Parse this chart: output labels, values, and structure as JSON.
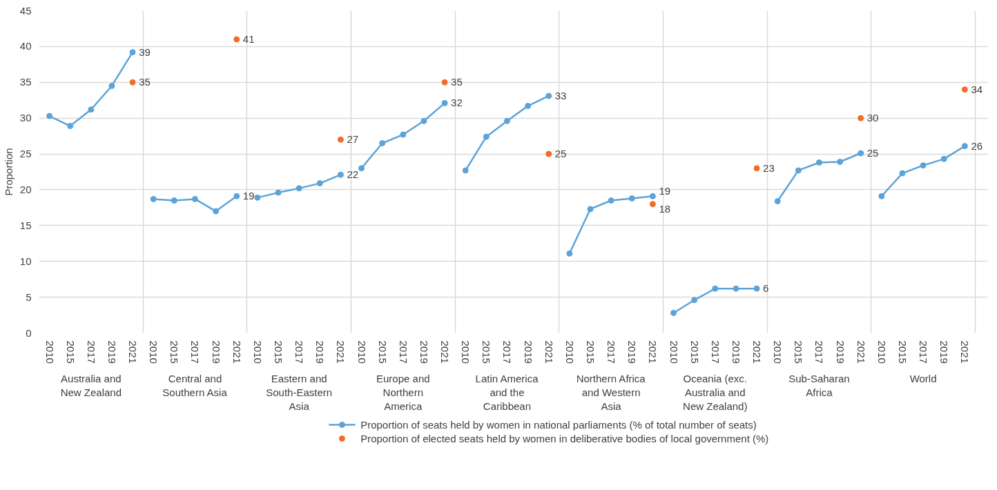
{
  "chart_data": {
    "type": "line",
    "ylabel": "Proportion",
    "categories": [
      "2010",
      "2015",
      "2017",
      "2019",
      "2021",
      "2010",
      "2015",
      "2017",
      "2019",
      "2021",
      "2010",
      "2015",
      "2017",
      "2019",
      "2021",
      "2010",
      "2015",
      "2017",
      "2019",
      "2021",
      "2010",
      "2015",
      "2017",
      "2019",
      "2021",
      "2010",
      "2015",
      "2017",
      "2019",
      "2021",
      "2010",
      "2015",
      "2017",
      "2019",
      "2021",
      "2010",
      "2015",
      "2017",
      "2019",
      "2021",
      "2010",
      "2015",
      "2017",
      "2019",
      "2021"
    ],
    "annotations": [
      "Australia and New Zealand",
      "Central and Southern Asia",
      "Eastern and South-Eastern Asia",
      "Europe and Northern America",
      "Latin America and the Caribbean",
      "Northern Africa and Western Asia",
      "Oceania (exc. Australia and New Zealand)",
      "Sub-Saharan Africa",
      "World"
    ],
    "series": [
      {
        "name": "Proportion of seats held by women in national parliaments (% of total number of seats)",
        "color": "#5ba3d9",
        "values": [
          30.3,
          28.9,
          31.2,
          34.5,
          39.2,
          18.7,
          18.5,
          18.7,
          17.0,
          19.1,
          18.9,
          19.6,
          20.2,
          20.9,
          22.1,
          23.0,
          26.5,
          27.7,
          29.6,
          32.1,
          22.7,
          27.4,
          29.6,
          31.7,
          33.1,
          11.1,
          17.3,
          18.5,
          18.8,
          19.1,
          2.8,
          4.6,
          6.2,
          6.2,
          6.2,
          18.4,
          22.7,
          23.8,
          23.9,
          25.1,
          19.1,
          22.3,
          23.4,
          24.3,
          26.1
        ],
        "value_labels": [
          null,
          null,
          null,
          null,
          "39",
          null,
          null,
          null,
          null,
          "19",
          null,
          null,
          null,
          null,
          "22",
          null,
          null,
          null,
          null,
          "32",
          null,
          null,
          null,
          null,
          "33",
          null,
          null,
          null,
          null,
          "19",
          null,
          null,
          null,
          null,
          "6",
          null,
          null,
          null,
          null,
          "25",
          null,
          null,
          null,
          null,
          "26"
        ]
      },
      {
        "name": "Proportion of elected seats held by women in deliberative bodies of local government (%)",
        "type": "scatter",
        "color": "#f26b2a",
        "values": [
          null,
          null,
          null,
          null,
          35,
          null,
          null,
          null,
          null,
          41,
          null,
          null,
          null,
          null,
          27,
          null,
          null,
          null,
          null,
          35,
          null,
          null,
          null,
          null,
          25,
          null,
          null,
          null,
          null,
          18,
          null,
          null,
          null,
          null,
          23,
          null,
          null,
          null,
          null,
          30,
          null,
          null,
          null,
          null,
          34
        ],
        "value_labels": [
          null,
          null,
          null,
          null,
          "35",
          null,
          null,
          null,
          null,
          "41",
          null,
          null,
          null,
          null,
          "27",
          null,
          null,
          null,
          null,
          "35",
          null,
          null,
          null,
          null,
          "25",
          null,
          null,
          null,
          null,
          "18",
          null,
          null,
          null,
          null,
          "23",
          null,
          null,
          null,
          null,
          "30",
          null,
          null,
          null,
          null,
          "34"
        ]
      }
    ],
    "ylim": [
      0,
      45
    ],
    "yticks": [
      0,
      5,
      10,
      15,
      20,
      25,
      30,
      35,
      40,
      45
    ],
    "grid": true,
    "legend": "bottom",
    "marker": "circle"
  }
}
